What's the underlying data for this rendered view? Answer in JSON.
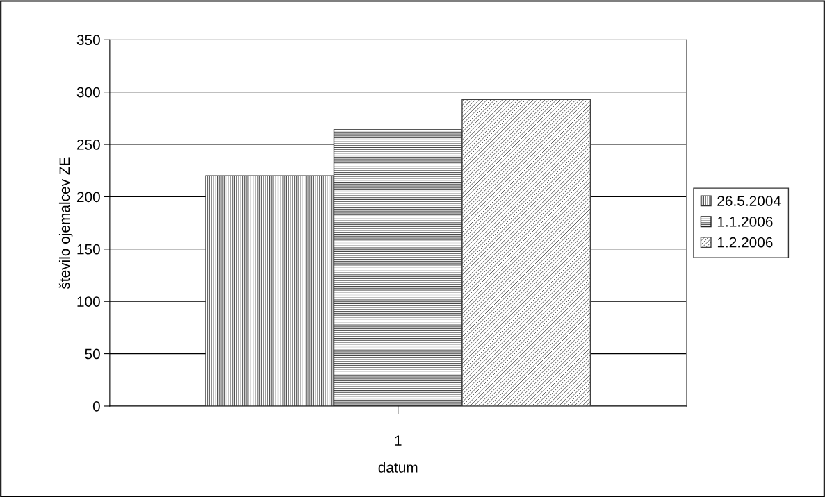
{
  "chart_data": {
    "type": "bar",
    "xlabel": "datum",
    "ylabel": "število ojemalcev ZE",
    "categories": [
      "1"
    ],
    "series": [
      {
        "name": "26.5.2004",
        "color": "#303030",
        "values": [
          220
        ]
      },
      {
        "name": "1.1.2006",
        "color": "#202020",
        "values": [
          264
        ]
      },
      {
        "name": "1.2.2006",
        "color": "#404040",
        "values": [
          293
        ]
      }
    ],
    "ylim": [
      0,
      350
    ],
    "yticks": [
      0,
      50,
      100,
      150,
      200,
      250,
      300,
      350
    ],
    "grid": "y",
    "legend": "right"
  }
}
